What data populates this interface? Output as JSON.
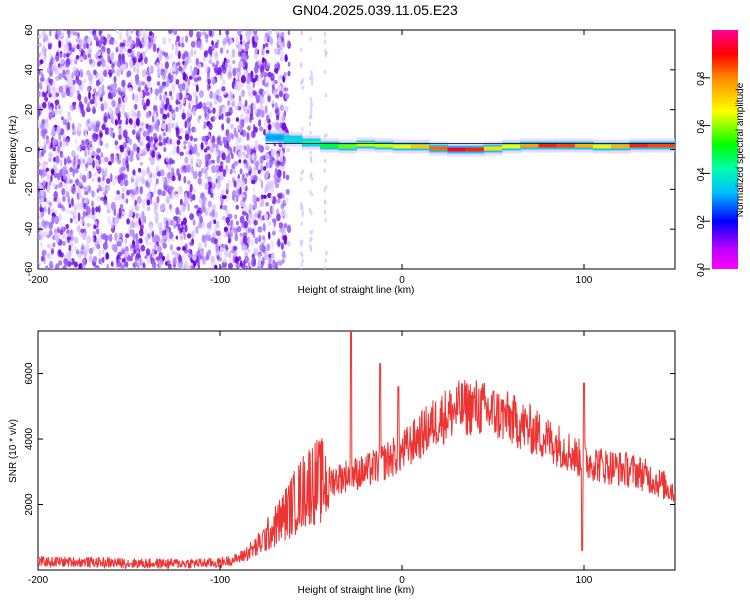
{
  "title": "GN04.2025.039.11.05.E23",
  "colorbar": {
    "label": "Normalized spectral amplitude",
    "ticks": [
      "0.0",
      "0.2",
      "0.4",
      "0.6",
      "0.8"
    ],
    "colors": [
      "#ff00ff",
      "#8a2be2",
      "#0000ff",
      "#00bfff",
      "#00ff7f",
      "#00ff00",
      "#ffff00",
      "#ff8c00",
      "#ff0000",
      "#ff00aa"
    ]
  },
  "chart_data": [
    {
      "type": "heatmap",
      "xlabel": "Height of straight line (km)",
      "ylabel": "Frequency (Hz)",
      "xlim": [
        -200,
        150
      ],
      "ylim": [
        -60,
        60
      ],
      "xticks": [
        -200,
        -100,
        0,
        100
      ],
      "yticks": [
        -60,
        -40,
        -20,
        0,
        20,
        40,
        60
      ],
      "noise_region": [
        -200,
        -62
      ],
      "signal_line": {
        "x": [
          -75,
          -65,
          -55,
          -45,
          -35,
          -25,
          -15,
          -5,
          5,
          15,
          25,
          35,
          45,
          55,
          65,
          75,
          85,
          95,
          105,
          115,
          125,
          135,
          150
        ],
        "y": [
          6,
          6,
          4,
          3,
          1,
          2,
          3,
          1,
          2,
          1,
          0,
          0,
          0,
          1,
          2,
          2,
          2,
          2,
          2,
          1,
          2,
          2,
          2
        ],
        "level": [
          0.25,
          0.35,
          0.4,
          0.45,
          0.55,
          0.6,
          0.65,
          0.6,
          0.7,
          0.75,
          0.9,
          0.95,
          0.8,
          0.6,
          0.7,
          0.85,
          0.9,
          0.8,
          0.7,
          0.65,
          0.85,
          0.9,
          0.8
        ]
      }
    },
    {
      "type": "line",
      "xlabel": "Height of straight line (km)",
      "ylabel": "SNR (10 * v/v)",
      "xlim": [
        -200,
        150
      ],
      "ylim": [
        0,
        7300
      ],
      "xticks": [
        -200,
        -100,
        0,
        100
      ],
      "yticks": [
        2000,
        4000,
        6000
      ],
      "series": [
        {
          "color": "#ee3333",
          "x": [
            -200,
            -180,
            -160,
            -140,
            -120,
            -100,
            -90,
            -80,
            -70,
            -60,
            -50,
            -40,
            -30,
            -20,
            -10,
            0,
            10,
            20,
            30,
            40,
            50,
            60,
            70,
            80,
            90,
            95,
            100,
            105,
            110,
            120,
            130,
            140,
            150
          ],
          "y": [
            250,
            250,
            220,
            200,
            200,
            220,
            350,
            700,
            1300,
            2000,
            2700,
            2700,
            2900,
            3000,
            3300,
            3600,
            4100,
            4600,
            4900,
            5000,
            4800,
            4600,
            4300,
            4000,
            3700,
            3500,
            3300,
            3300,
            3200,
            3100,
            3000,
            2700,
            2400
          ]
        }
      ],
      "spikes": [
        {
          "x": -28,
          "y": 7300
        },
        {
          "x": -12,
          "y": 6300
        },
        {
          "x": -2,
          "y": 5600
        },
        {
          "x": 99,
          "y": 600
        },
        {
          "x": 100,
          "y": 5700
        }
      ]
    }
  ]
}
